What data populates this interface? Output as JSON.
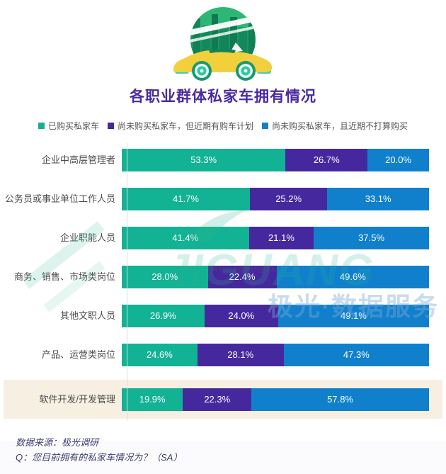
{
  "header": {
    "title": "各职业群体私家车拥有情况",
    "icon": "car-city-badge-icon"
  },
  "legend": [
    {
      "label": "已购买私家车",
      "color": "#12b294"
    },
    {
      "label": "尚未购买私家车，但近期有购车计划",
      "color": "#45289e"
    },
    {
      "label": "尚未购买私家车，且近期不打算购买",
      "color": "#1080cc"
    }
  ],
  "chart_data": {
    "type": "bar",
    "orientation": "horizontal",
    "stacked": true,
    "unit": "percent",
    "title": "各职业群体私家车拥有情况",
    "xlim": [
      0,
      100
    ],
    "grid": false,
    "legend_position": "top",
    "value_label_suffix": "%",
    "categories": [
      "企业中高层管理者",
      "公务员或事业单位工作人员",
      "企业职能人员",
      "商务、销售、市场类岗位",
      "其他文职人员",
      "产品、运营类岗位",
      "软件开发/开发管理"
    ],
    "series": [
      {
        "name": "已购买私家车",
        "color": "#12b294",
        "values": [
          53.3,
          41.7,
          41.4,
          28.0,
          26.9,
          24.6,
          19.9
        ]
      },
      {
        "name": "尚未购买私家车，但近期有购车计划",
        "color": "#45289e",
        "values": [
          26.7,
          25.2,
          21.1,
          22.4,
          24.0,
          28.1,
          22.3
        ]
      },
      {
        "name": "尚未购买私家车，且近期不打算购买",
        "color": "#1080cc",
        "values": [
          20.0,
          33.1,
          37.5,
          49.6,
          49.1,
          47.3,
          57.8
        ]
      }
    ],
    "highlighted_category": "软件开发/开发管理",
    "highlight_bg": "#f6efe2"
  },
  "watermark": {
    "brand": "JIGUANG",
    "url": "www.jiguang.cn",
    "tagline": "极光·数据服务"
  },
  "footer": {
    "source": "数据来源：极光调研",
    "question": "Q：您目前拥有的私家车情况为？（SA）"
  }
}
